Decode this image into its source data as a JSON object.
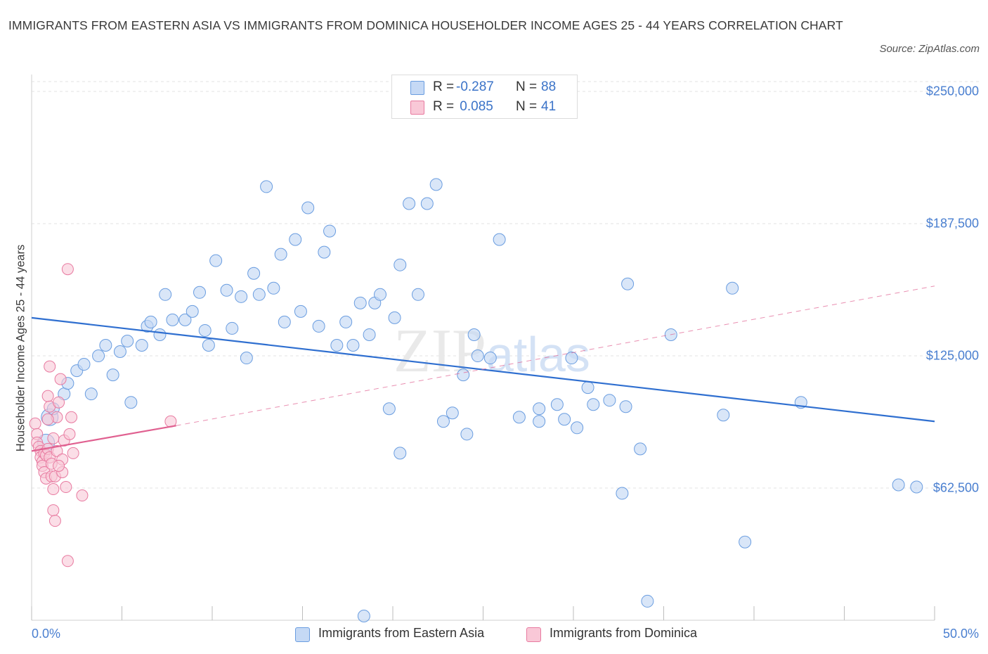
{
  "title": "IMMIGRANTS FROM EASTERN ASIA VS IMMIGRANTS FROM DOMINICA HOUSEHOLDER INCOME AGES 25 - 44 YEARS CORRELATION CHART",
  "source": "Source: ZipAtlas.com",
  "colors": {
    "blue_fill": "#c5d9f5",
    "blue_stroke": "#6a9de0",
    "blue_line": "#2f6fd0",
    "pink_fill": "#f9c8d7",
    "pink_stroke": "#e87aa0",
    "pink_line": "#e06090",
    "axis_text": "#4a7fd0"
  },
  "legend": {
    "rows": [
      {
        "r_label": "R =",
        "r_value": "-0.287",
        "n_label": "N =",
        "n_value": "88",
        "color": "#c5d9f5"
      },
      {
        "r_label": "R =",
        "r_value": " 0.085",
        "n_label": "N =",
        "n_value": "41",
        "color": "#f9c8d7"
      }
    ]
  },
  "bottom_legend": {
    "series1": "Immigrants from Eastern Asia",
    "series2": "Immigrants from Dominica"
  },
  "chart_data": {
    "type": "scatter",
    "title": "IMMIGRANTS FROM EASTERN ASIA VS IMMIGRANTS FROM DOMINICA HOUSEHOLDER INCOME AGES 25 - 44 YEARS CORRELATION CHART",
    "xlabel": "",
    "ylabel": "Householder Income Ages 25 - 44 years",
    "x_unit": "%",
    "xlim": [
      0,
      50
    ],
    "ylim": [
      0,
      258000
    ],
    "x_tick_labels": [
      "0.0%",
      "50.0%"
    ],
    "y_ticks": [
      62500,
      125000,
      187500,
      250000
    ],
    "y_tick_labels": [
      "$62,500",
      "$125,000",
      "$187,500",
      "$250,000"
    ],
    "grid": true,
    "watermark": "ZIPatlas",
    "series": [
      {
        "name": "Immigrants from Eastern Asia",
        "R": -0.287,
        "N": 88,
        "trend": {
          "x": [
            0,
            50
          ],
          "y": [
            143000,
            94000
          ]
        },
        "points": [
          [
            0.8,
            84000
          ],
          [
            1.0,
            96000
          ],
          [
            1.2,
            100000
          ],
          [
            1.8,
            107000
          ],
          [
            2.0,
            112000
          ],
          [
            2.5,
            118000
          ],
          [
            2.9,
            121000
          ],
          [
            3.3,
            107000
          ],
          [
            3.7,
            125000
          ],
          [
            4.1,
            130000
          ],
          [
            4.5,
            116000
          ],
          [
            4.9,
            127000
          ],
          [
            5.3,
            132000
          ],
          [
            5.5,
            103000
          ],
          [
            6.1,
            130000
          ],
          [
            6.4,
            139000
          ],
          [
            6.6,
            141000
          ],
          [
            7.1,
            135000
          ],
          [
            7.4,
            154000
          ],
          [
            7.8,
            142000
          ],
          [
            8.5,
            142000
          ],
          [
            8.9,
            146000
          ],
          [
            9.3,
            155000
          ],
          [
            9.6,
            137000
          ],
          [
            9.8,
            130000
          ],
          [
            10.2,
            170000
          ],
          [
            10.8,
            156000
          ],
          [
            11.1,
            138000
          ],
          [
            11.6,
            153000
          ],
          [
            11.9,
            124000
          ],
          [
            12.3,
            164000
          ],
          [
            12.6,
            154000
          ],
          [
            13.0,
            205000
          ],
          [
            13.4,
            157000
          ],
          [
            13.8,
            173000
          ],
          [
            14.0,
            141000
          ],
          [
            14.6,
            180000
          ],
          [
            14.9,
            146000
          ],
          [
            15.3,
            195000
          ],
          [
            15.9,
            139000
          ],
          [
            16.2,
            174000
          ],
          [
            16.5,
            184000
          ],
          [
            16.9,
            130000
          ],
          [
            17.4,
            141000
          ],
          [
            17.8,
            130000
          ],
          [
            18.2,
            150000
          ],
          [
            18.7,
            135000
          ],
          [
            19.0,
            150000
          ],
          [
            19.3,
            154000
          ],
          [
            19.8,
            100000
          ],
          [
            20.1,
            143000
          ],
          [
            20.4,
            168000
          ],
          [
            20.9,
            197000
          ],
          [
            21.4,
            154000
          ],
          [
            21.9,
            197000
          ],
          [
            22.4,
            206000
          ],
          [
            22.8,
            94000
          ],
          [
            23.3,
            98000
          ],
          [
            24.1,
            88000
          ],
          [
            24.5,
            135000
          ],
          [
            24.7,
            125000
          ],
          [
            25.9,
            180000
          ],
          [
            27.0,
            96000
          ],
          [
            28.1,
            100000
          ],
          [
            29.1,
            102000
          ],
          [
            29.5,
            95000
          ],
          [
            29.9,
            124000
          ],
          [
            30.2,
            91000
          ],
          [
            30.8,
            110000
          ],
          [
            31.1,
            102000
          ],
          [
            32.0,
            104000
          ],
          [
            32.7,
            60000
          ],
          [
            33.0,
            159000
          ],
          [
            35.4,
            135000
          ],
          [
            38.8,
            157000
          ],
          [
            39.5,
            37000
          ],
          [
            42.6,
            103000
          ],
          [
            48.0,
            64000
          ],
          [
            49.0,
            63000
          ],
          [
            25.4,
            124000
          ],
          [
            20.4,
            79000
          ],
          [
            23.9,
            116000
          ],
          [
            28.1,
            94000
          ],
          [
            32.9,
            101000
          ],
          [
            33.7,
            81000
          ],
          [
            38.3,
            97000
          ],
          [
            34.1,
            9000
          ],
          [
            18.4,
            2000
          ]
        ]
      },
      {
        "name": "Immigrants from Dominica",
        "R": 0.085,
        "N": 41,
        "trend": {
          "x": [
            0,
            8
          ],
          "y": [
            80000,
            92000
          ],
          "extended": {
            "x": [
              8,
              50
            ],
            "y": [
              92000,
              158000
            ]
          }
        },
        "points": [
          [
            0.2,
            93000
          ],
          [
            0.3,
            88000
          ],
          [
            0.3,
            84000
          ],
          [
            0.4,
            82000
          ],
          [
            0.5,
            80000
          ],
          [
            0.5,
            77000
          ],
          [
            0.6,
            75000
          ],
          [
            0.6,
            73000
          ],
          [
            0.7,
            79000
          ],
          [
            0.7,
            70000
          ],
          [
            0.8,
            78000
          ],
          [
            0.8,
            67000
          ],
          [
            0.9,
            106000
          ],
          [
            0.9,
            81000
          ],
          [
            1.0,
            101000
          ],
          [
            1.0,
            120000
          ],
          [
            1.0,
            77000
          ],
          [
            1.1,
            74000
          ],
          [
            1.1,
            68000
          ],
          [
            1.2,
            86000
          ],
          [
            1.2,
            62000
          ],
          [
            1.2,
            52000
          ],
          [
            1.3,
            47000
          ],
          [
            1.3,
            68000
          ],
          [
            1.4,
            96000
          ],
          [
            1.4,
            80000
          ],
          [
            1.5,
            103000
          ],
          [
            1.6,
            114000
          ],
          [
            1.7,
            76000
          ],
          [
            1.8,
            85000
          ],
          [
            1.7,
            70000
          ],
          [
            1.9,
            63000
          ],
          [
            2.0,
            166000
          ],
          [
            2.0,
            28000
          ],
          [
            2.1,
            88000
          ],
          [
            2.2,
            96000
          ],
          [
            2.3,
            79000
          ],
          [
            2.8,
            59000
          ],
          [
            7.7,
            94000
          ],
          [
            0.9,
            95000
          ],
          [
            1.5,
            73000
          ]
        ]
      }
    ]
  }
}
